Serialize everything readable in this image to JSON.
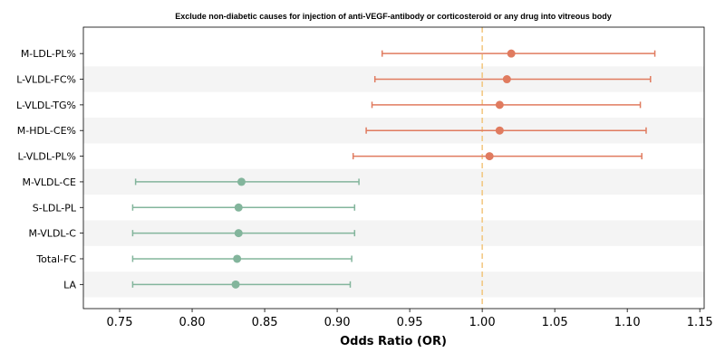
{
  "chart_data": {
    "type": "forest",
    "title": "Exclude non-diabetic causes for injection of anti-VEGF-antibody or corticosteroid or any drug into vitreous body",
    "xlabel": "Odds Ratio (OR)",
    "ylabel": "",
    "xlim": [
      0.725,
      1.153
    ],
    "xticks": [
      "0.75",
      "0.80",
      "0.85",
      "0.90",
      "0.95",
      "1.00",
      "1.05",
      "1.10",
      "1.15"
    ],
    "reference_line": 1.0,
    "row_shading": "alternating light gray",
    "colors": {
      "increase": "#E07B5F",
      "decrease": "#83B59C",
      "reference": "#F2C57C",
      "band": "#F4F4F4"
    },
    "rows": [
      {
        "label": "M-LDL-PL%",
        "or": 1.02,
        "lower": 0.931,
        "upper": 1.119,
        "group": "increase"
      },
      {
        "label": "L-VLDL-FC%",
        "or": 1.017,
        "lower": 0.926,
        "upper": 1.116,
        "group": "increase"
      },
      {
        "label": "L-VLDL-TG%",
        "or": 1.012,
        "lower": 0.924,
        "upper": 1.109,
        "group": "increase"
      },
      {
        "label": "M-HDL-CE%",
        "or": 1.012,
        "lower": 0.92,
        "upper": 1.113,
        "group": "increase"
      },
      {
        "label": "L-VLDL-PL%",
        "or": 1.005,
        "lower": 0.911,
        "upper": 1.11,
        "group": "increase"
      },
      {
        "label": "M-VLDL-CE",
        "or": 0.834,
        "lower": 0.761,
        "upper": 0.915,
        "group": "decrease"
      },
      {
        "label": "S-LDL-PL",
        "or": 0.832,
        "lower": 0.759,
        "upper": 0.912,
        "group": "decrease"
      },
      {
        "label": "M-VLDL-C",
        "or": 0.832,
        "lower": 0.759,
        "upper": 0.912,
        "group": "decrease"
      },
      {
        "label": "Total-FC",
        "or": 0.831,
        "lower": 0.759,
        "upper": 0.91,
        "group": "decrease"
      },
      {
        "label": "LA",
        "or": 0.83,
        "lower": 0.759,
        "upper": 0.909,
        "group": "decrease"
      }
    ]
  }
}
